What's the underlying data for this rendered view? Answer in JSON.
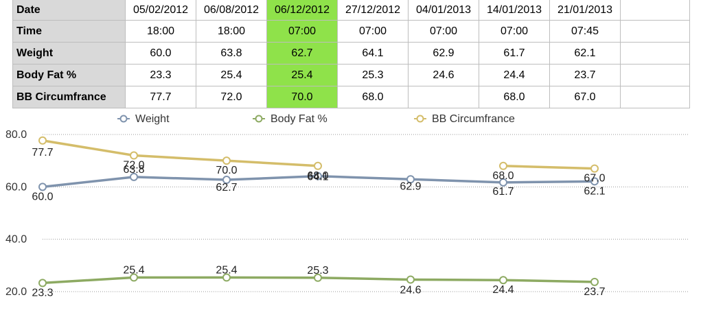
{
  "table": {
    "rows": [
      {
        "label": "Date",
        "cells": [
          "05/02/2012",
          "06/08/2012",
          "06/12/2012",
          "27/12/2012",
          "04/01/2013",
          "14/01/2013",
          "21/01/2013"
        ]
      },
      {
        "label": "Time",
        "cells": [
          "18:00",
          "18:00",
          "07:00",
          "07:00",
          "07:00",
          "07:00",
          "07:45"
        ]
      },
      {
        "label": "Weight",
        "cells": [
          "60.0",
          "63.8",
          "62.7",
          "64.1",
          "62.9",
          "61.7",
          "62.1"
        ]
      },
      {
        "label": "Body Fat %",
        "cells": [
          "23.3",
          "25.4",
          "25.4",
          "25.3",
          "24.6",
          "24.4",
          "23.7"
        ]
      },
      {
        "label": "BB Circumfrance",
        "cells": [
          "77.7",
          "72.0",
          "70.0",
          "68.0",
          "",
          "68.0",
          "67.0"
        ]
      }
    ],
    "highlight_column": 2,
    "highlight_color": "#8fe24a",
    "header_bg": "#d9d9d9"
  },
  "chart_data": {
    "type": "line",
    "categories": [
      "05/02/2012",
      "06/08/2012",
      "06/12/2012",
      "27/12/2012",
      "04/01/2013",
      "14/01/2013",
      "21/01/2013"
    ],
    "series": [
      {
        "name": "Weight",
        "color": "#7f93ad",
        "values": [
          60.0,
          63.8,
          62.7,
          64.1,
          62.9,
          61.7,
          62.1
        ]
      },
      {
        "name": "Body Fat %",
        "color": "#8daa62",
        "values": [
          23.3,
          25.4,
          25.4,
          25.3,
          24.6,
          24.4,
          23.7
        ]
      },
      {
        "name": "BB Circumfrance",
        "color": "#d4bd6a",
        "values": [
          77.7,
          72.0,
          70.0,
          68.0,
          null,
          68.0,
          67.0
        ]
      }
    ],
    "yticks": [
      "20.0",
      "40.0",
      "60.0",
      "80.0"
    ],
    "ylim": [
      20,
      80
    ],
    "grid": "dotted horizontal",
    "legend": "top"
  }
}
